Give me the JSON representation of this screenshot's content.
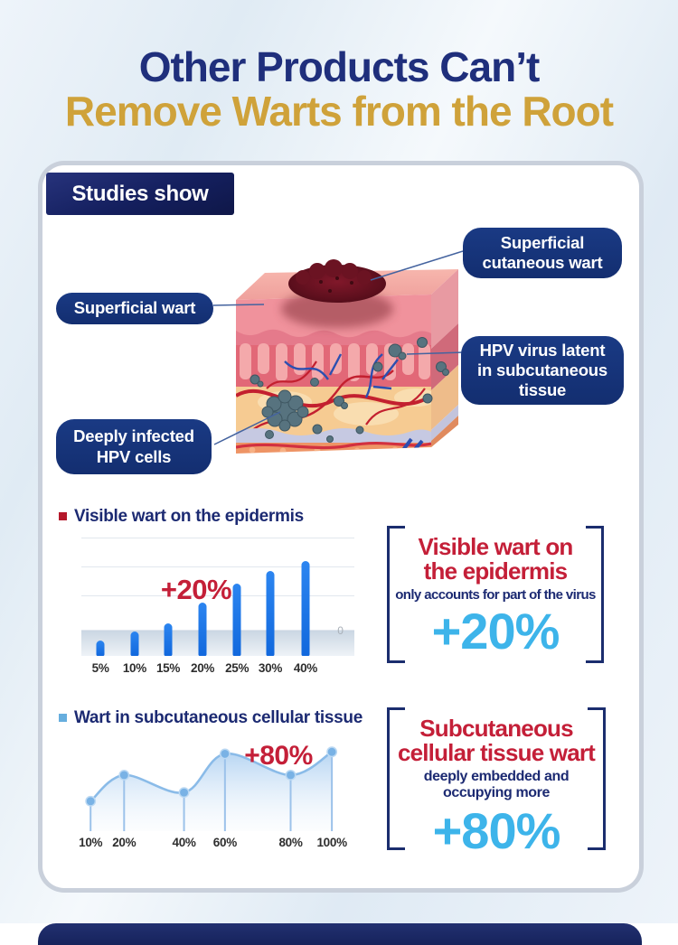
{
  "title": {
    "line1": "Other Products Can’t",
    "line2": "Remove Warts from the Root"
  },
  "studies_badge": "Studies show",
  "callouts": {
    "top_right": [
      "Superficial",
      "cutaneous wart"
    ],
    "left": "Superficial wart",
    "right": [
      "HPV virus latent",
      "in subcutaneous",
      "tissue"
    ],
    "bottom_left": [
      "Deeply infected",
      "HPV cells"
    ]
  },
  "section1": {
    "heading": "Visible wart on the epidermis"
  },
  "section2": {
    "heading": "Wart in subcutaneous cellular tissue"
  },
  "box1": {
    "title": [
      "Visible wart on",
      "the epidermis"
    ],
    "subtitle": "only accounts for part of the virus",
    "value": "+20%"
  },
  "box2": {
    "title": [
      "Subcutaneous",
      "cellular tissue wart"
    ],
    "subtitle": [
      "deeply embedded and",
      "occupying more"
    ],
    "value": "+80%"
  },
  "chart_data": [
    {
      "type": "bar",
      "title": "Visible wart on the epidermis",
      "categories": [
        "5%",
        "10%",
        "15%",
        "20%",
        "25%",
        "30%",
        "40%"
      ],
      "values": [
        13,
        20,
        27,
        44,
        60,
        70,
        78
      ],
      "ylim": [
        0,
        100
      ],
      "annotation": "+20%",
      "axis_right_label": "0",
      "grid": true,
      "legend": "none",
      "bar_centers_pct": [
        7,
        19.5,
        31.8,
        44.4,
        57,
        69.2,
        82.1
      ],
      "gridline_pct": [
        2,
        26,
        50,
        78
      ],
      "bar_color": "#1371e8"
    },
    {
      "type": "area",
      "title": "Wart in subcutaneous cellular tissue",
      "categories": [
        "10%",
        "20%",
        "40%",
        "60%",
        "80%",
        "100%"
      ],
      "x_pct": [
        5,
        17.2,
        39,
        53.9,
        77.8,
        92.8
      ],
      "values": [
        31,
        58,
        40,
        80,
        58,
        82
      ],
      "ylim": [
        0,
        100
      ],
      "annotation": "+80%",
      "grid": false,
      "legend": "none",
      "line_color": "#8abbe8",
      "marker_color": "#79b2e5"
    }
  ],
  "colors": {
    "title_navy": "#1f2f7c",
    "title_gold": "#cfa23a",
    "pill_navy": "#16357c",
    "badge_navy": "#141f5e",
    "accent_red": "#c41f38",
    "accent_light_blue": "#3db4ea",
    "bar_blue": "#1371e8",
    "line_blue": "#8abbe8",
    "bullet_red": "#b5182b",
    "bullet_blue": "#66aede",
    "card_border": "#c9d0db"
  }
}
